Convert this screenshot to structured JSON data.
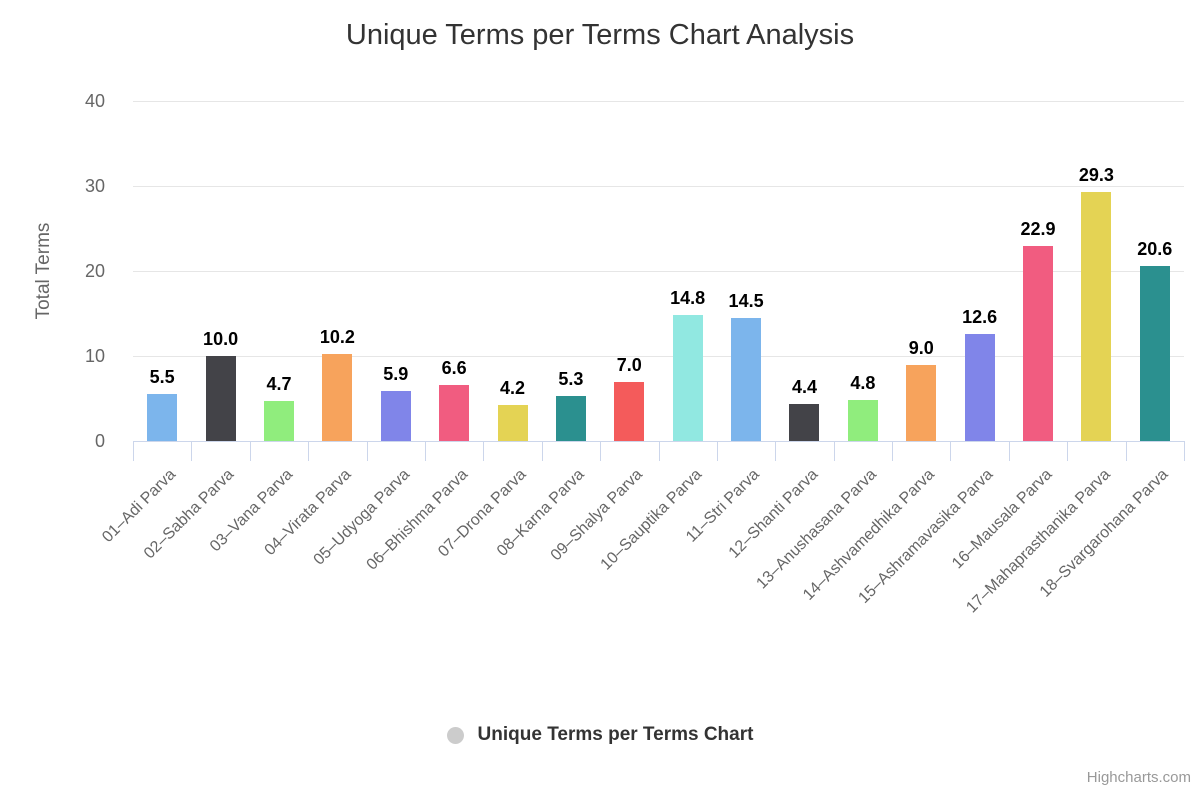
{
  "credits_text": "Highcharts.com",
  "legend": {
    "marker_color": "#cccccc"
  },
  "style_colors": {
    "title_text": "#333333",
    "axis_text": "#666666",
    "gridline": "#e6e6e6",
    "axis_line": "#ccd6eb",
    "data_label_text": "#000000",
    "credits_text": "#999999"
  },
  "chart_data": {
    "type": "bar",
    "title": "Unique Terms per Terms Chart Analysis",
    "series_name": "Unique Terms per Terms Chart",
    "xlabel": "",
    "ylabel": "Total Terms",
    "ylim": [
      0,
      40
    ],
    "yticks": [
      0,
      10,
      20,
      30,
      40
    ],
    "grid": true,
    "legend_position": "bottom",
    "categories": [
      "01–Adi Parva",
      "02–Sabha Parva",
      "03–Vana Parva",
      "04–Virata Parva",
      "05–Udyoga Parva",
      "06–Bhishma Parva",
      "07–Drona Parva",
      "08–Karna Parva",
      "09–Shalya Parva",
      "10–Sauptika Parva",
      "11–Stri Parva",
      "12–Shanti Parva",
      "13–Anushasana Parva",
      "14–Ashvamedhika Parva",
      "15–Ashramavasika Parva",
      "16–Mausala Parva",
      "17–Mahaprasthanika Parva",
      "18–Svargarohana Parva"
    ],
    "values": [
      5.5,
      10.0,
      4.7,
      10.2,
      5.9,
      6.6,
      4.2,
      5.3,
      7.0,
      14.8,
      14.5,
      4.4,
      4.8,
      9.0,
      12.6,
      22.9,
      29.3,
      20.6
    ],
    "value_labels": [
      "5.5",
      "10.0",
      "4.7",
      "10.2",
      "5.9",
      "6.6",
      "4.2",
      "5.3",
      "7.0",
      "14.8",
      "14.5",
      "4.4",
      "4.8",
      "9.0",
      "12.6",
      "22.9",
      "29.3",
      "20.6"
    ],
    "palette": [
      "#7cb5ec",
      "#434348",
      "#90ed7d",
      "#f7a35c",
      "#8085e9",
      "#f15c80",
      "#e4d354",
      "#2b908f",
      "#f45b5b",
      "#91e8e1"
    ]
  }
}
